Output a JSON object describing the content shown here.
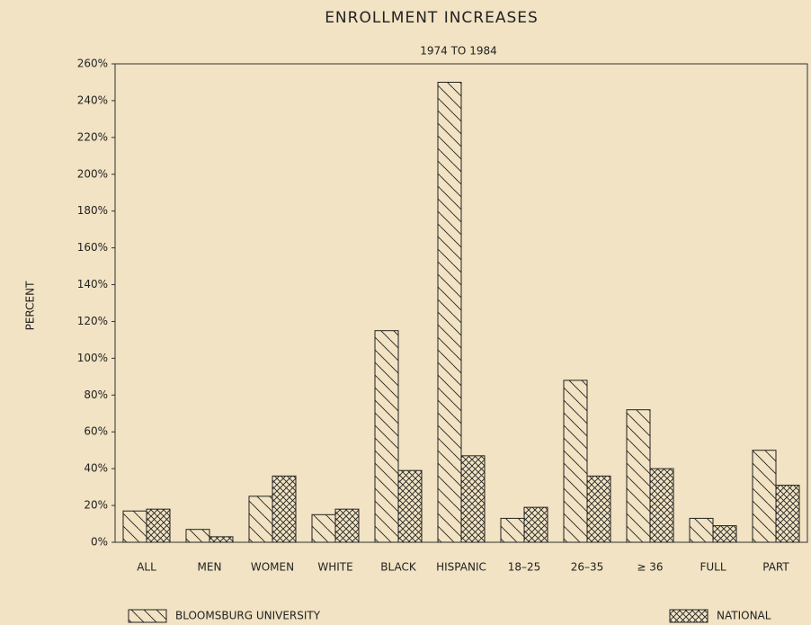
{
  "chart_data": {
    "type": "bar",
    "title": "ENROLLMENT INCREASES",
    "subtitle": "1974 TO 1984",
    "y_label": "PERCENT",
    "categories": [
      "ALL",
      "MEN",
      "WOMEN",
      "WHITE",
      "BLACK",
      "HISPANIC",
      "18–25",
      "26–35",
      "≥ 36",
      "FULL",
      "PART"
    ],
    "series": [
      {
        "name": "BLOOMSBURG UNIVERSITY",
        "color": "#222222",
        "values": [
          17,
          7,
          25,
          15,
          115,
          250,
          13,
          88,
          72,
          13,
          50
        ]
      },
      {
        "name": "NATIONAL",
        "color": "#222222",
        "values": [
          18,
          3,
          36,
          18,
          39,
          47,
          19,
          36,
          40,
          9,
          31
        ]
      }
    ],
    "ylim": [
      0,
      260
    ],
    "yticks": [
      {
        "value": 0,
        "label": "0%"
      },
      {
        "value": 20,
        "label": "20%"
      },
      {
        "value": 40,
        "label": "40%"
      },
      {
        "value": 60,
        "label": "60%"
      },
      {
        "value": 80,
        "label": "80%"
      },
      {
        "value": 100,
        "label": "100%"
      },
      {
        "value": 120,
        "label": "120%"
      },
      {
        "value": 140,
        "label": "140%"
      },
      {
        "value": 160,
        "label": "160%"
      },
      {
        "value": 180,
        "label": "180%"
      },
      {
        "value": 200,
        "label": "200%"
      },
      {
        "value": 220,
        "label": "220%"
      },
      {
        "value": 240,
        "label": "240%"
      },
      {
        "value": 260,
        "label": "260%"
      }
    ],
    "grid": false
  }
}
